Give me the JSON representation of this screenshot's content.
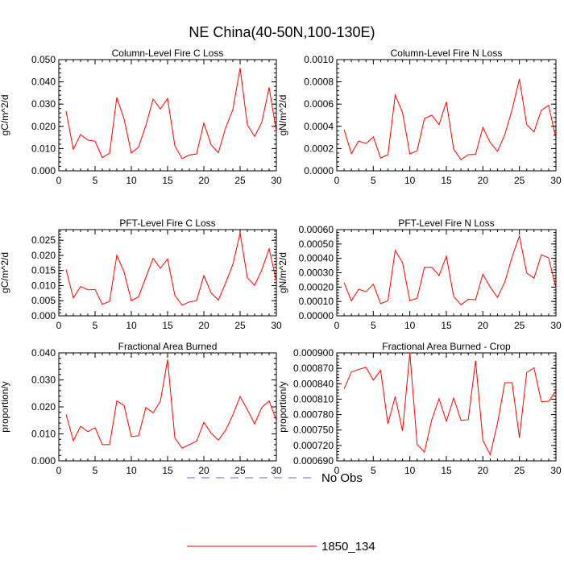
{
  "title": "NE China(40-50N,100-130E)",
  "legend": {
    "entries": [
      {
        "label": "No Obs",
        "color": "#6a6aa8",
        "style": "dashed"
      },
      {
        "label": "1850_134",
        "color": "#ff0000",
        "style": "solid"
      }
    ]
  },
  "chart_data": [
    {
      "type": "line",
      "title": "Column-Level Fire C Loss",
      "ylabel": "gC/m^2/d",
      "xlim": [
        0,
        30
      ],
      "ylim": [
        0,
        0.05
      ],
      "yticks": [
        "0.000",
        "0.010",
        "0.020",
        "0.030",
        "0.040",
        "0.050"
      ],
      "xticks": [
        "0",
        "5",
        "10",
        "15",
        "20",
        "25",
        "30"
      ],
      "x": [
        1,
        2,
        3,
        4,
        5,
        6,
        7,
        8,
        9,
        10,
        11,
        12,
        13,
        14,
        15,
        16,
        17,
        18,
        19,
        20,
        21,
        22,
        23,
        24,
        25,
        26,
        27,
        28,
        29,
        30
      ],
      "series": [
        {
          "name": "1850_134",
          "color": "#ff0000",
          "values": [
            0.0268,
            0.0097,
            0.0163,
            0.0138,
            0.0133,
            0.0059,
            0.0079,
            0.033,
            0.0233,
            0.008,
            0.0107,
            0.0203,
            0.0322,
            0.0278,
            0.0325,
            0.0113,
            0.0055,
            0.0071,
            0.0076,
            0.0215,
            0.0117,
            0.0081,
            0.0192,
            0.0275,
            0.0462,
            0.0207,
            0.0155,
            0.0218,
            0.0375,
            0.0178
          ]
        }
      ]
    },
    {
      "type": "line",
      "title": "Column-Level Fire N Loss",
      "ylabel": "gN/m^2/d",
      "xlim": [
        0,
        30
      ],
      "ylim": [
        0,
        0.001
      ],
      "yticks": [
        "0.0000",
        "0.0002",
        "0.0004",
        "0.0006",
        "0.0008",
        "0.0010"
      ],
      "xticks": [
        "0",
        "5",
        "10",
        "15",
        "20",
        "25",
        "30"
      ],
      "x": [
        1,
        2,
        3,
        4,
        5,
        6,
        7,
        8,
        9,
        10,
        11,
        12,
        13,
        14,
        15,
        16,
        17,
        18,
        19,
        20,
        21,
        22,
        23,
        24,
        25,
        26,
        27,
        28,
        29,
        30
      ],
      "series": [
        {
          "name": "1850_134",
          "color": "#ff0000",
          "values": [
            0.00037,
            0.000155,
            0.000268,
            0.000245,
            0.000305,
            0.000115,
            0.000145,
            0.00068,
            0.000525,
            0.000152,
            0.00018,
            0.00047,
            0.0005,
            0.000415,
            0.00062,
            0.000195,
            0.0001,
            0.000145,
            0.000148,
            0.00039,
            0.000255,
            0.000175,
            0.000325,
            0.00055,
            0.000825,
            0.000415,
            0.00035,
            0.000545,
            0.00059,
            0.00029
          ]
        }
      ]
    },
    {
      "type": "line",
      "title": "PFT-Level Fire C Loss",
      "ylabel": "gC/m^2/d",
      "xlim": [
        0,
        30
      ],
      "ylim": [
        0,
        0.0285
      ],
      "yticks": [
        "0.000",
        "0.005",
        "0.010",
        "0.015",
        "0.020",
        "0.025"
      ],
      "xticks": [
        "0",
        "5",
        "10",
        "15",
        "20",
        "25",
        "30"
      ],
      "x": [
        1,
        2,
        3,
        4,
        5,
        6,
        7,
        8,
        9,
        10,
        11,
        12,
        13,
        14,
        15,
        16,
        17,
        18,
        19,
        20,
        21,
        22,
        23,
        24,
        25,
        26,
        27,
        28,
        29,
        30
      ],
      "series": [
        {
          "name": "1850_134",
          "color": "#ff0000",
          "values": [
            0.0153,
            0.0059,
            0.0097,
            0.0086,
            0.0087,
            0.0038,
            0.0048,
            0.02,
            0.0145,
            0.005,
            0.0063,
            0.0127,
            0.019,
            0.0157,
            0.0188,
            0.0068,
            0.0035,
            0.0046,
            0.005,
            0.0133,
            0.0076,
            0.0052,
            0.0108,
            0.017,
            0.0273,
            0.0126,
            0.0101,
            0.0152,
            0.0222,
            0.0115
          ]
        }
      ]
    },
    {
      "type": "line",
      "title": "PFT-Level Fire N Loss",
      "ylabel": "gN/m^2/d",
      "xlim": [
        0,
        30
      ],
      "ylim": [
        0,
        0.0006
      ],
      "yticks": [
        "0.00000",
        "0.00010",
        "0.00020",
        "0.00030",
        "0.00040",
        "0.00050",
        "0.00060"
      ],
      "xticks": [
        "0",
        "5",
        "10",
        "15",
        "20",
        "25",
        "30"
      ],
      "x": [
        1,
        2,
        3,
        4,
        5,
        6,
        7,
        8,
        9,
        10,
        11,
        12,
        13,
        14,
        15,
        16,
        17,
        18,
        19,
        20,
        21,
        22,
        23,
        24,
        25,
        26,
        27,
        28,
        29,
        30
      ],
      "series": [
        {
          "name": "1850_134",
          "color": "#ff0000",
          "values": [
            0.00023,
            0.000105,
            0.000185,
            0.000168,
            0.00022,
            8.5e-05,
            0.000105,
            0.000455,
            0.00037,
            0.000105,
            0.000123,
            0.000337,
            0.000338,
            0.00028,
            0.000415,
            0.000135,
            7.7e-05,
            0.000115,
            0.000112,
            0.00029,
            0.0002,
            0.000128,
            0.000235,
            0.00041,
            0.000555,
            0.000298,
            0.000262,
            0.000425,
            0.000403,
            0.000195
          ]
        }
      ]
    },
    {
      "type": "line",
      "title": "Fractional Area Burned",
      "ylabel": "proportion/y",
      "xlim": [
        0,
        30
      ],
      "ylim": [
        0,
        0.04
      ],
      "yticks": [
        "0.000",
        "0.010",
        "0.020",
        "0.030",
        "0.040"
      ],
      "xticks": [
        "0",
        "5",
        "10",
        "15",
        "20",
        "25",
        "30"
      ],
      "x": [
        1,
        2,
        3,
        4,
        5,
        6,
        7,
        8,
        9,
        10,
        11,
        12,
        13,
        14,
        15,
        16,
        17,
        18,
        19,
        20,
        21,
        22,
        23,
        24,
        25,
        26,
        27,
        28,
        29,
        30
      ],
      "series": [
        {
          "name": "1850_134",
          "color": "#ff0000",
          "values": [
            0.0172,
            0.0075,
            0.0128,
            0.0108,
            0.0123,
            0.006,
            0.006,
            0.0222,
            0.0205,
            0.009,
            0.0093,
            0.0198,
            0.0178,
            0.022,
            0.0375,
            0.0085,
            0.0047,
            0.006,
            0.0073,
            0.0143,
            0.0103,
            0.0077,
            0.0113,
            0.017,
            0.0238,
            0.019,
            0.0137,
            0.0198,
            0.0222,
            0.015
          ]
        }
      ]
    },
    {
      "type": "line",
      "title": "Fractional Area Burned - Crop",
      "ylabel": "proportion/y",
      "xlim": [
        0,
        30
      ],
      "ylim": [
        0.00069,
        0.0009
      ],
      "yticks": [
        "0.000690",
        "0.000720",
        "0.000750",
        "0.000780",
        "0.000810",
        "0.000840",
        "0.000870",
        "0.000900"
      ],
      "xticks": [
        "0",
        "5",
        "10",
        "15",
        "20",
        "25",
        "30"
      ],
      "x": [
        1,
        2,
        3,
        4,
        5,
        6,
        7,
        8,
        9,
        10,
        11,
        12,
        13,
        14,
        15,
        16,
        17,
        18,
        19,
        20,
        21,
        22,
        23,
        24,
        25,
        26,
        27,
        28,
        29,
        30
      ],
      "series": [
        {
          "name": "1850_134",
          "color": "#ff0000",
          "values": [
            0.00083,
            0.000863,
            0.000868,
            0.000872,
            0.000847,
            0.000866,
            0.000762,
            0.000815,
            0.000748,
            0.0009,
            0.000722,
            0.000707,
            0.00077,
            0.000811,
            0.000767,
            0.000812,
            0.000769,
            0.00077,
            0.000885,
            0.00073,
            0.000702,
            0.000763,
            0.000842,
            0.000842,
            0.000735,
            0.000862,
            0.000871,
            0.000805,
            0.000806,
            0.000826
          ]
        }
      ]
    }
  ]
}
